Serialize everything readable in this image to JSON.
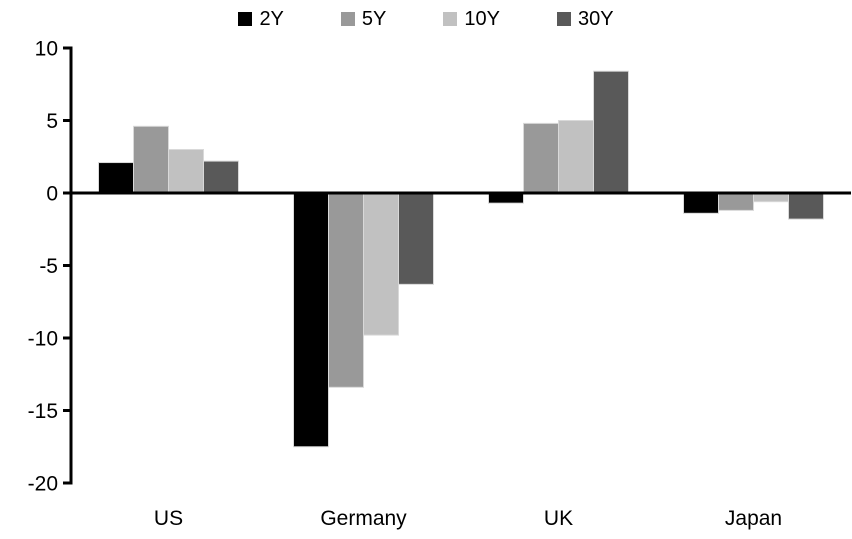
{
  "chart_data": {
    "type": "bar",
    "title": "",
    "xlabel": "",
    "ylabel": "",
    "categories": [
      "US",
      "Germany",
      "UK",
      "Japan"
    ],
    "series": [
      {
        "name": "2Y",
        "color": "#000000",
        "values": [
          2.1,
          -17.5,
          -0.7,
          -1.4
        ]
      },
      {
        "name": "5Y",
        "color": "#999999",
        "values": [
          4.6,
          -13.4,
          4.8,
          -1.2
        ]
      },
      {
        "name": "10Y",
        "color": "#c1c1c1",
        "values": [
          3.0,
          -9.8,
          5.0,
          -0.6
        ]
      },
      {
        "name": "30Y",
        "color": "#595959",
        "values": [
          2.2,
          -6.3,
          8.4,
          -1.8
        ]
      }
    ],
    "ylim": [
      -20,
      10
    ],
    "yticks": [
      10,
      5,
      0,
      -5,
      -10,
      -15,
      -20
    ],
    "grid": false,
    "legend_position": "top",
    "axis_color": "#000000",
    "background_color": "#ffffff",
    "bar_border_color": "#d9d9d9"
  }
}
